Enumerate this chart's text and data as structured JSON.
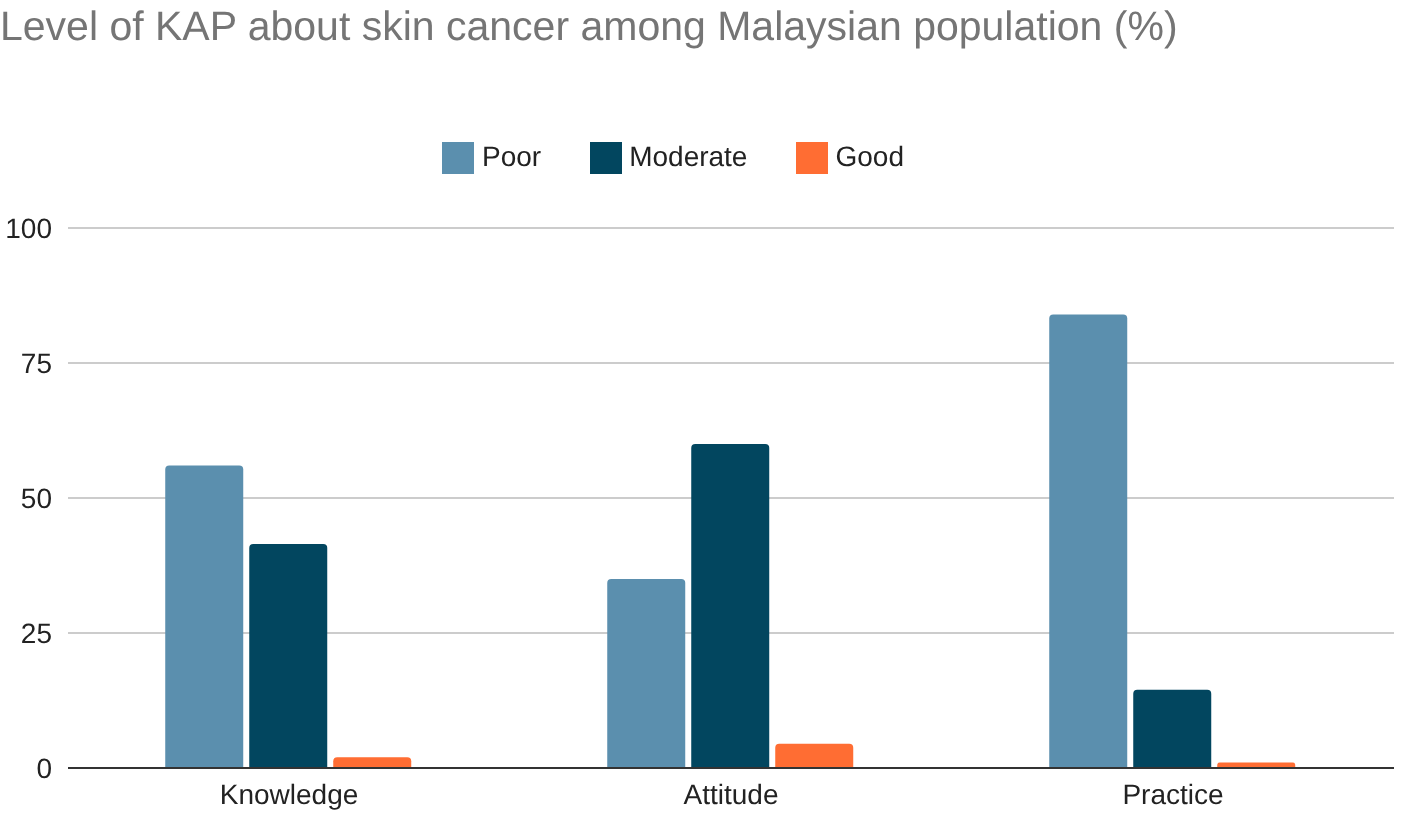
{
  "chart_data": {
    "type": "bar",
    "title": "Level of KAP about skin cancer among Malaysian population (%)",
    "categories": [
      "Knowledge",
      "Attitude",
      "Practice"
    ],
    "series": [
      {
        "name": "Poor",
        "color": "#5b8fae",
        "values": [
          56,
          35,
          84
        ]
      },
      {
        "name": "Moderate",
        "color": "#02465f",
        "values": [
          41.5,
          60,
          14.5
        ]
      },
      {
        "name": "Good",
        "color": "#ff6d33",
        "values": [
          2,
          4.5,
          1
        ]
      }
    ],
    "ylim": [
      0,
      100
    ],
    "yticks": [
      0,
      25,
      50,
      75,
      100
    ],
    "grid": "y",
    "legend": "top"
  }
}
